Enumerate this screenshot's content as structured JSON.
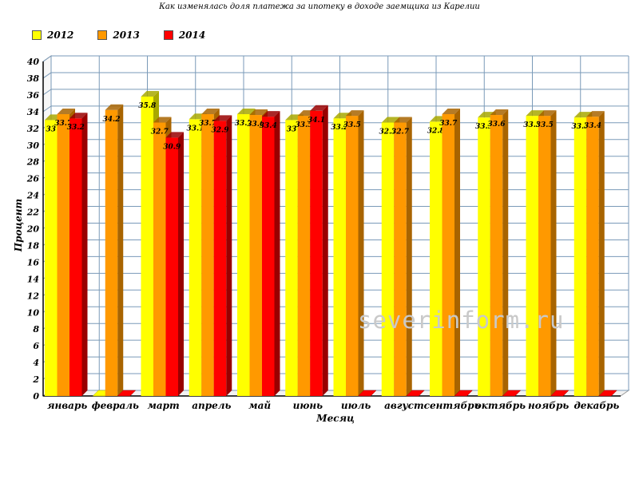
{
  "chart_data": {
    "type": "bar",
    "title": "Как изменялась доля платежа за ипотеку в доходе заемщика из Карелии",
    "xlabel": "Месяц",
    "ylabel": "Процент",
    "ylim": [
      0,
      40
    ],
    "ytick_step": 2,
    "grid": true,
    "legend_position": "top-left",
    "categories": [
      "январь",
      "февраль",
      "март",
      "апрель",
      "май",
      "июнь",
      "июль",
      "август",
      "сентябрь",
      "октябрь",
      "ноябрь",
      "декабрь"
    ],
    "series": [
      {
        "name": "2012",
        "color": "#ffff00",
        "side_color": "#a8a800",
        "values": [
          33,
          0,
          35.8,
          33.1,
          33.7,
          33,
          33.2,
          32.7,
          32.8,
          33.3,
          33.5,
          33.3
        ],
        "labels": [
          "33",
          "",
          "35.8",
          "33.1",
          "33.7",
          "33",
          "33.2",
          "32.7",
          "32.8",
          "33.3",
          "33.5",
          "33.3"
        ]
      },
      {
        "name": "2013",
        "color": "#ff9900",
        "side_color": "#a86400",
        "values": [
          33.7,
          34.2,
          32.7,
          33.7,
          33.6,
          33.5,
          33.5,
          32.7,
          33.7,
          33.6,
          33.5,
          33.4
        ],
        "labels": [
          "33.7",
          "34.2",
          "32.7",
          "33.7",
          "33.6",
          "33.5",
          "33.5",
          "32.7",
          "33.7",
          "33.6",
          "33.5",
          "33.4"
        ]
      },
      {
        "name": "2014",
        "color": "#ff0000",
        "side_color": "#990000",
        "values": [
          33.2,
          0,
          30.9,
          32.9,
          33.4,
          34.1,
          0,
          0,
          0,
          0,
          0,
          0
        ],
        "labels": [
          "33.2",
          "",
          "30.9",
          "32.9",
          "33.4",
          "34.1",
          "",
          "",
          "",
          "",
          "",
          ""
        ]
      }
    ]
  },
  "watermark": "severinform.ru"
}
